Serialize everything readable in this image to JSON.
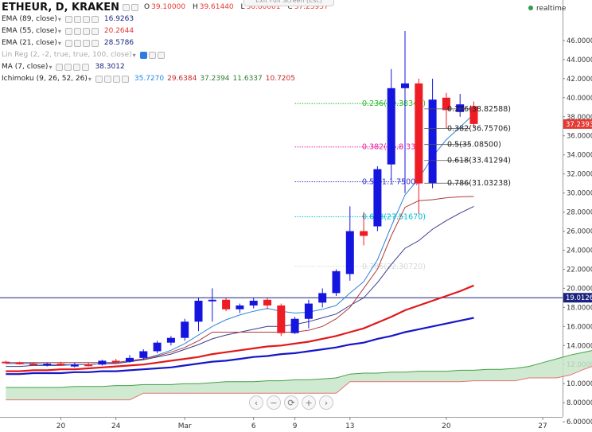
{
  "window": {
    "exit_fullscreen": "Exit Full Screen (Esc)",
    "realtime_label": "realtime"
  },
  "symbol": {
    "title": "ETHEUR, D, KRAKEN",
    "ohlc": {
      "o_label": "O",
      "o": "39.10000",
      "h_label": "H",
      "h": "39.61440",
      "l_label": "L",
      "l": "36.80001",
      "c_label": "C",
      "c": "37.23937"
    }
  },
  "indicators": [
    {
      "name": "EMA (89, close)",
      "value": "16.9263",
      "color": "#1a237e"
    },
    {
      "name": "EMA (55, close)",
      "value": "20.2644",
      "color": "#e53935"
    },
    {
      "name": "EMA (21, close)",
      "value": "28.5786",
      "color": "#1a237e"
    },
    {
      "name": "Lin Reg (2, -2, true, true, 100, close)",
      "value": "",
      "color": "#aaaaaa"
    },
    {
      "name": "MA (7, close)",
      "value": "38.3012",
      "color": "#1a237e"
    },
    {
      "name": "Ichimoku (9, 26, 52, 26)",
      "values": [
        "35.7270",
        "29.6384",
        "37.2394",
        "11.6337",
        "10.7205"
      ],
      "colors": [
        "#1e88e5",
        "#c62828",
        "#2e7d32",
        "#2e7d32",
        "#c62828"
      ]
    }
  ],
  "icons": {
    "eye": "eye-icon",
    "settings": "gear-icon",
    "add": "plus-icon",
    "remove": "close-icon",
    "menu": "caret-down-icon"
  },
  "nav_buttons": [
    "‹",
    "−",
    "⟳",
    "+",
    "›"
  ],
  "chart_data": {
    "type": "candlestick",
    "ylim": [
      5.0,
      49.0
    ],
    "y_ticks": [
      "6.00000",
      "8.00000",
      "10.00000",
      "12.00000",
      "14.00000",
      "16.00000",
      "18.00000",
      "20.00000",
      "22.00000",
      "24.00000",
      "26.00000",
      "28.00000",
      "30.00000",
      "32.00000",
      "34.00000",
      "36.00000",
      "38.00000",
      "40.00000",
      "42.00000",
      "44.00000",
      "46.00000"
    ],
    "x_ticks": [
      {
        "label": "20",
        "i": 4
      },
      {
        "label": "24",
        "i": 8
      },
      {
        "label": "Mar",
        "i": 13
      },
      {
        "label": "6",
        "i": 18
      },
      {
        "label": "9",
        "i": 21
      },
      {
        "label": "13",
        "i": 25
      },
      {
        "label": "20",
        "i": 32
      },
      {
        "label": "27",
        "i": 39
      }
    ],
    "last_price": {
      "value": 37.23937,
      "label": "37.23937",
      "color": "#e53935"
    },
    "hline": {
      "value": 19.0126,
      "label": "19.0126",
      "color": "#1a237e"
    },
    "candles": [
      {
        "o": 12.3,
        "h": 12.4,
        "l": 12.1,
        "c": 12.2
      },
      {
        "o": 12.2,
        "h": 12.3,
        "l": 12.0,
        "c": 12.1
      },
      {
        "o": 12.1,
        "h": 12.2,
        "l": 11.9,
        "c": 12.0
      },
      {
        "o": 12.0,
        "h": 12.2,
        "l": 11.8,
        "c": 12.1
      },
      {
        "o": 12.1,
        "h": 12.3,
        "l": 11.9,
        "c": 11.9
      },
      {
        "o": 11.8,
        "h": 12.2,
        "l": 11.7,
        "c": 12.0
      },
      {
        "o": 12.0,
        "h": 12.2,
        "l": 11.8,
        "c": 11.9
      },
      {
        "o": 12.0,
        "h": 12.5,
        "l": 11.9,
        "c": 12.4
      },
      {
        "o": 12.4,
        "h": 12.6,
        "l": 12.2,
        "c": 12.3
      },
      {
        "o": 12.3,
        "h": 13.0,
        "l": 12.2,
        "c": 12.7
      },
      {
        "o": 12.7,
        "h": 13.6,
        "l": 12.5,
        "c": 13.4
      },
      {
        "o": 13.4,
        "h": 14.5,
        "l": 13.2,
        "c": 14.3
      },
      {
        "o": 14.3,
        "h": 15.0,
        "l": 14.0,
        "c": 14.8
      },
      {
        "o": 14.8,
        "h": 16.8,
        "l": 14.5,
        "c": 16.5
      },
      {
        "o": 16.5,
        "h": 19.0,
        "l": 15.5,
        "c": 18.7
      },
      {
        "o": 18.7,
        "h": 20.0,
        "l": 16.5,
        "c": 18.8
      },
      {
        "o": 18.8,
        "h": 19.0,
        "l": 17.6,
        "c": 17.8
      },
      {
        "o": 17.8,
        "h": 18.4,
        "l": 17.4,
        "c": 18.2
      },
      {
        "o": 18.2,
        "h": 19.0,
        "l": 17.9,
        "c": 18.7
      },
      {
        "o": 18.8,
        "h": 19.0,
        "l": 17.8,
        "c": 18.2
      },
      {
        "o": 18.2,
        "h": 18.4,
        "l": 15.0,
        "c": 15.3
      },
      {
        "o": 15.3,
        "h": 17.0,
        "l": 15.2,
        "c": 16.8
      },
      {
        "o": 16.8,
        "h": 18.8,
        "l": 15.8,
        "c": 18.4
      },
      {
        "o": 18.5,
        "h": 20.0,
        "l": 18.0,
        "c": 19.5
      },
      {
        "o": 19.5,
        "h": 22.0,
        "l": 19.2,
        "c": 21.8
      },
      {
        "o": 21.5,
        "h": 28.6,
        "l": 20.8,
        "c": 26.0
      },
      {
        "o": 26.0,
        "h": 28.0,
        "l": 24.5,
        "c": 25.5
      },
      {
        "o": 26.5,
        "h": 32.8,
        "l": 26.0,
        "c": 32.5
      },
      {
        "o": 33.0,
        "h": 43.0,
        "l": 31.5,
        "c": 41.0
      },
      {
        "o": 41.0,
        "h": 47.0,
        "l": 30.0,
        "c": 41.5
      },
      {
        "o": 41.5,
        "h": 42.0,
        "l": 27.8,
        "c": 31.0
      },
      {
        "o": 31.0,
        "h": 42.0,
        "l": 30.5,
        "c": 39.8
      },
      {
        "o": 40.0,
        "h": 40.5,
        "l": 36.8,
        "c": 38.7
      },
      {
        "o": 38.5,
        "h": 40.4,
        "l": 38.0,
        "c": 39.3
      },
      {
        "o": 39.1,
        "h": 39.6,
        "l": 36.8,
        "c": 37.24
      }
    ],
    "series": [
      {
        "name": "EMA (89, close)",
        "color": "#1616c8",
        "width": 2.2,
        "x0": 0,
        "values": [
          11.0,
          11.0,
          11.1,
          11.1,
          11.1,
          11.2,
          11.2,
          11.3,
          11.3,
          11.4,
          11.5,
          11.6,
          11.7,
          11.9,
          12.1,
          12.3,
          12.4,
          12.6,
          12.8,
          12.9,
          13.1,
          13.2,
          13.4,
          13.6,
          13.8,
          14.1,
          14.3,
          14.7,
          15.0,
          15.4,
          15.7,
          16.0,
          16.3,
          16.6,
          16.9
        ]
      },
      {
        "name": "EMA (55, close)",
        "color": "#e01919",
        "width": 2.2,
        "x0": 0,
        "values": [
          11.3,
          11.3,
          11.4,
          11.4,
          11.5,
          11.5,
          11.6,
          11.7,
          11.8,
          11.9,
          12.0,
          12.2,
          12.4,
          12.6,
          12.8,
          13.1,
          13.3,
          13.5,
          13.7,
          13.9,
          14.0,
          14.2,
          14.4,
          14.7,
          15.0,
          15.4,
          15.8,
          16.4,
          17.0,
          17.7,
          18.2,
          18.7,
          19.2,
          19.7,
          20.3
        ]
      },
      {
        "name": "EMA (21, close)",
        "color": "#3b3b8c",
        "width": 1,
        "x0": 0,
        "values": [
          11.8,
          11.8,
          11.9,
          11.9,
          11.9,
          12.0,
          12.0,
          12.1,
          12.1,
          12.3,
          12.5,
          12.8,
          13.1,
          13.6,
          14.1,
          14.7,
          15.1,
          15.4,
          15.7,
          16.0,
          16.0,
          16.2,
          16.5,
          16.9,
          17.3,
          18.2,
          19.0,
          20.6,
          22.5,
          24.2,
          25.0,
          26.2,
          27.1,
          27.9,
          28.6
        ]
      },
      {
        "name": "MA (7, close)",
        "color": "#2e84d9",
        "width": 1,
        "x0": 0,
        "values": [
          12.1,
          12.1,
          12.1,
          12.0,
          12.0,
          12.0,
          12.0,
          12.1,
          12.2,
          12.4,
          12.6,
          13.0,
          13.5,
          14.2,
          15.1,
          16.0,
          16.7,
          17.2,
          17.6,
          17.9,
          17.6,
          17.4,
          17.5,
          17.8,
          18.2,
          19.5,
          20.7,
          23.0,
          26.5,
          29.8,
          31.5,
          33.8,
          35.6,
          36.9,
          38.3
        ]
      },
      {
        "name": "Kijun",
        "color": "#b23a3a",
        "width": 1,
        "x0": 0,
        "values": [
          12.2,
          12.2,
          12.2,
          12.2,
          12.2,
          12.2,
          12.2,
          12.2,
          12.2,
          12.4,
          12.6,
          12.9,
          13.3,
          13.8,
          14.5,
          15.4,
          15.4,
          15.4,
          15.4,
          15.4,
          15.4,
          15.4,
          15.6,
          16.0,
          16.8,
          18.0,
          20.0,
          22.0,
          25.5,
          28.5,
          29.2,
          29.3,
          29.5,
          29.6,
          29.64
        ]
      }
    ],
    "cloud": {
      "x0": 0,
      "top": [
        9.6,
        9.6,
        9.6,
        9.6,
        9.6,
        9.7,
        9.7,
        9.7,
        9.8,
        9.8,
        9.9,
        9.9,
        9.9,
        10.0,
        10.0,
        10.1,
        10.2,
        10.2,
        10.2,
        10.3,
        10.3,
        10.4,
        10.4,
        10.5,
        10.6,
        11.0,
        11.1,
        11.1,
        11.2,
        11.2,
        11.3,
        11.3,
        11.3,
        11.4,
        11.4,
        11.5,
        11.5,
        11.6,
        11.8,
        12.2,
        12.6,
        13.0,
        13.3,
        13.6,
        14.0
      ],
      "bottom": [
        8.3,
        8.3,
        8.3,
        8.3,
        8.3,
        8.3,
        8.3,
        8.3,
        8.3,
        8.3,
        9.0,
        9.0,
        9.0,
        9.0,
        9.0,
        9.0,
        9.0,
        9.0,
        9.0,
        9.0,
        9.0,
        9.0,
        9.0,
        9.0,
        9.0,
        10.2,
        10.2,
        10.2,
        10.2,
        10.2,
        10.2,
        10.2,
        10.2,
        10.2,
        10.3,
        10.3,
        10.3,
        10.3,
        10.6,
        10.6,
        10.6,
        10.9,
        11.5,
        12.0,
        12.6
      ],
      "fill": "#c8e6c9",
      "top_color": "#43a047",
      "bottom_color": "#e57373"
    },
    "fib_left": [
      {
        "label": "0.236(39.38340)",
        "value": 39.3834,
        "color": "#22bb22",
        "x1": 21.0,
        "x2": 29.0
      },
      {
        "label": "0.382(34.8 330)",
        "value": 34.833,
        "color": "#e91e9f",
        "x1": 21.0,
        "x2": 29.0
      },
      {
        "label": "0.5(31.1 7500)",
        "value": 31.175,
        "color": "#3333cc",
        "x1": 21.0,
        "x2": 29.0
      },
      {
        "label": "0.618(27.51670)",
        "value": 27.5167,
        "color": "#00bcd4",
        "x1": 21.0,
        "x2": 29.0
      },
      {
        "label": "0.786(22.30720)",
        "value": 22.3072,
        "color": "#d8d8d8",
        "x1": 21.0,
        "x2": 29.0
      }
    ],
    "fib_right": [
      {
        "label": "0.236(38.82588)",
        "value": 38.82588
      },
      {
        "label": "0.382(36.75706)",
        "value": 36.75706
      },
      {
        "label": "0.5(35.08500)",
        "value": 35.085
      },
      {
        "label": "0.618(33.41294)",
        "value": 33.41294
      },
      {
        "label": "0.786(31.03238)",
        "value": 31.03238
      }
    ]
  }
}
